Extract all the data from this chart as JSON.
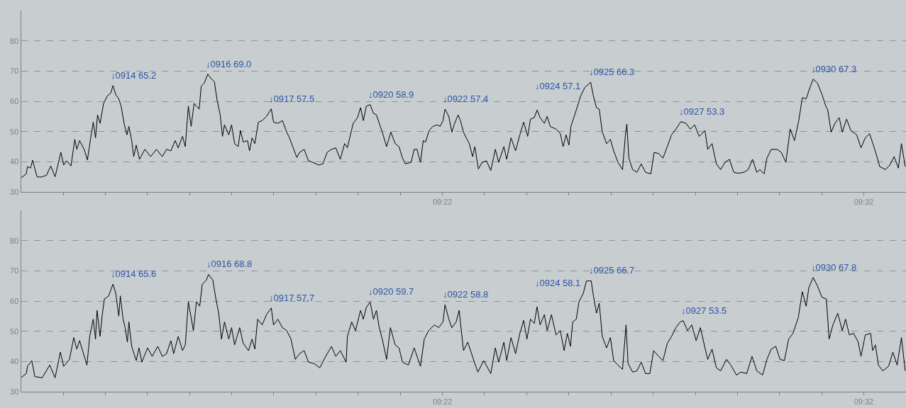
{
  "chart_data": [
    {
      "type": "line",
      "color": "#000000",
      "x": [
        9.2,
        9.2021,
        9.2026,
        9.2038,
        9.2046,
        9.2064,
        9.2078,
        9.2101,
        9.2118,
        9.2135,
        9.2158,
        9.2169,
        9.2181,
        9.2198,
        9.2213,
        9.2221,
        9.2232,
        9.225,
        9.2263,
        9.2275,
        9.2286,
        9.2295,
        9.2303,
        9.2313,
        9.2327,
        9.2341,
        9.2355,
        9.2364,
        9.2375,
        9.2387,
        9.2396,
        9.2408,
        9.2419,
        9.2427,
        9.2438,
        9.2446,
        9.2456,
        9.2469,
        9.249,
        9.2513,
        9.2536,
        9.2559,
        9.2576,
        9.2593,
        9.261,
        9.2622,
        9.2639,
        9.265,
        9.2662,
        9.2673,
        9.2685,
        9.2705,
        9.2713,
        9.2725,
        9.2739,
        9.2753,
        9.2765,
        9.2776,
        9.2788,
        9.2797,
        9.2805,
        9.2822,
        9.2833,
        9.2845,
        9.2859,
        9.2868,
        9.2879,
        9.2896,
        9.2904,
        9.2914,
        9.2925,
        9.2939,
        9.2954,
        9.2971,
        9.299,
        9.2999,
        9.3016,
        9.3034,
        9.3051,
        9.3062,
        9.3079,
        9.3091,
        9.3102,
        9.312,
        9.3137,
        9.3154,
        9.3177,
        9.3194,
        9.3211,
        9.3228,
        9.3245,
        9.3263,
        9.328,
        9.3291,
        9.3303,
        9.3314,
        9.3331,
        9.3343,
        9.3354,
        9.3366,
        9.3381,
        9.3394,
        9.3406,
        9.3417,
        9.3429,
        9.3446,
        9.3463,
        9.348,
        9.3495,
        9.3509,
        9.352,
        9.3543,
        9.3555,
        9.3566,
        9.358,
        9.3591,
        9.36,
        9.3614,
        9.3629,
        9.3646,
        9.3658,
        9.3669,
        9.3677,
        9.3692,
        9.3704,
        9.3715,
        9.3729,
        9.3738,
        9.375,
        9.3761,
        9.3773,
        9.3786,
        9.3795,
        9.3809,
        9.3824,
        9.3841,
        9.3858,
        9.3876,
        9.3889,
        9.391,
        9.3921,
        9.3938,
        9.3956,
        9.3973,
        9.3988,
        9.4004,
        9.4015,
        9.403,
        9.4041,
        9.4053,
        9.407,
        9.4081,
        9.4093,
        9.4116,
        9.4133,
        9.4144,
        9.4156,
        9.4167,
        9.4175,
        9.419,
        9.4201,
        9.4213,
        9.423,
        9.4253,
        9.4264,
        9.4276,
        9.4287,
        9.4299,
        9.4316,
        9.4331,
        9.4344,
        9.4361,
        9.4379,
        9.439,
        9.4396,
        9.4404,
        9.4419,
        9.4436,
        9.4453,
        9.447,
        9.4491,
        9.4504,
        9.4522,
        9.4539,
        9.4556,
        9.4573,
        9.459,
        9.461,
        9.463,
        9.4647,
        9.4664,
        9.4682,
        9.4705,
        9.4716,
        9.4733,
        9.475,
        9.4767,
        9.4784,
        9.4802,
        9.4819,
        9.4836,
        9.4859,
        9.4876,
        9.4893,
        9.491,
        9.4922,
        9.4939,
        9.495,
        9.4967,
        9.499,
        9.5007,
        9.5025,
        9.5042,
        9.5059,
        9.5076,
        9.509,
        9.5105,
        9.5122,
        9.5133,
        9.515,
        9.5168,
        9.5185,
        9.519,
        9.5204,
        9.5219,
        9.5236,
        9.5248,
        9.5265,
        9.5282,
        9.5305,
        9.5322,
        9.5339,
        9.5356,
        9.5373,
        9.5385,
        9.5396,
        9.5419,
        9.5436,
        9.5453,
        9.547,
        9.5482,
        9.5497
      ],
      "values": [
        34.6,
        36.0,
        38.4,
        37.9,
        40.5,
        35.0,
        34.9,
        35.5,
        38.6,
        35.0,
        43.1,
        38.9,
        40.3,
        38.6,
        47.4,
        44.1,
        47.0,
        44.1,
        40.6,
        47.4,
        53.1,
        47.9,
        55.5,
        52.7,
        59.3,
        61.7,
        62.7,
        65.2,
        62.2,
        60.8,
        58.4,
        52.7,
        48.9,
        51.7,
        47.0,
        41.7,
        45.5,
        40.8,
        44.1,
        41.7,
        44.1,
        41.7,
        44.1,
        43.6,
        47.0,
        44.6,
        48.4,
        45.0,
        58.4,
        51.7,
        59.3,
        57.4,
        65.0,
        66.0,
        69.0,
        67.4,
        66.5,
        60.3,
        55.5,
        48.4,
        52.2,
        48.9,
        52.2,
        46.0,
        45.0,
        50.3,
        46.5,
        47.0,
        43.6,
        47.9,
        46.0,
        53.1,
        53.6,
        55.0,
        57.5,
        53.1,
        52.7,
        53.6,
        49.8,
        47.9,
        44.1,
        41.4,
        43.1,
        44.1,
        40.3,
        39.8,
        38.9,
        39.3,
        43.1,
        44.1,
        44.6,
        40.8,
        46.0,
        44.6,
        48.9,
        52.7,
        54.6,
        57.9,
        53.6,
        58.4,
        58.9,
        56.0,
        55.5,
        52.7,
        49.8,
        45.0,
        49.8,
        46.0,
        45.0,
        41.2,
        39.3,
        39.8,
        44.1,
        44.1,
        39.8,
        47.0,
        46.5,
        50.3,
        51.7,
        52.2,
        51.7,
        53.6,
        57.4,
        55.0,
        49.8,
        52.7,
        55.5,
        53.6,
        49.8,
        47.9,
        46.0,
        41.7,
        45.0,
        37.6,
        39.8,
        40.3,
        37.1,
        44.1,
        39.8,
        45.0,
        40.8,
        47.9,
        43.6,
        48.9,
        53.1,
        48.4,
        54.1,
        54.6,
        57.1,
        54.6,
        52.7,
        55.0,
        51.7,
        50.8,
        49.3,
        45.0,
        48.9,
        45.5,
        51.7,
        55.5,
        58.4,
        61.7,
        64.6,
        66.3,
        61.7,
        57.9,
        57.4,
        49.8,
        46.0,
        47.4,
        43.6,
        39.8,
        37.4,
        48.4,
        52.5,
        41.2,
        37.4,
        36.5,
        39.3,
        36.5,
        36.0,
        43.1,
        42.7,
        41.2,
        45.0,
        48.9,
        50.8,
        53.3,
        52.7,
        50.8,
        52.2,
        48.4,
        50.3,
        44.1,
        46.0,
        39.3,
        37.4,
        39.8,
        40.8,
        36.5,
        36.2,
        36.5,
        37.4,
        40.8,
        36.5,
        37.4,
        36.0,
        41.2,
        44.1,
        44.1,
        43.1,
        39.8,
        50.8,
        47.0,
        53.6,
        61.2,
        60.8,
        65.0,
        67.3,
        66.0,
        62.2,
        57.9,
        57.4,
        49.8,
        52.7,
        54.6,
        49.8,
        54.1,
        50.3,
        48.9,
        44.6,
        47.9,
        49.3,
        45.0,
        41.7,
        38.4,
        37.4,
        38.9,
        41.7,
        37.9,
        46.0,
        38.4
      ],
      "xlim": [
        9.2,
        9.55
      ],
      "xticks": [
        {
          "value": 9.2167,
          "label": null
        },
        {
          "value": 9.2333,
          "label": null
        },
        {
          "value": 9.25,
          "label": null
        },
        {
          "value": 9.2667,
          "label": null
        },
        {
          "value": 9.2833,
          "label": null
        },
        {
          "value": 9.3,
          "label": null
        },
        {
          "value": 9.3167,
          "label": null
        },
        {
          "value": 9.3333,
          "label": null
        },
        {
          "value": 9.35,
          "label": null
        },
        {
          "value": 9.3667,
          "label": "09:22"
        },
        {
          "value": 9.3833,
          "label": null
        },
        {
          "value": 9.4,
          "label": null
        },
        {
          "value": 9.4167,
          "label": null
        },
        {
          "value": 9.4333,
          "label": null
        },
        {
          "value": 9.45,
          "label": null
        },
        {
          "value": 9.4667,
          "label": null
        },
        {
          "value": 9.4833,
          "label": null
        },
        {
          "value": 9.5,
          "label": null
        },
        {
          "value": 9.5167,
          "label": null
        },
        {
          "value": 9.5333,
          "label": "09:32"
        }
      ],
      "ylim": [
        30,
        90
      ],
      "yticks": [
        30,
        40,
        50,
        60,
        70,
        80
      ],
      "grid": "y",
      "annotations": [
        {
          "text": "↓0914 65.2",
          "x": 9.2364,
          "y": 65.2
        },
        {
          "text": "↓0916 69.0",
          "x": 9.2739,
          "y": 69.0
        },
        {
          "text": "↓0917 57.5",
          "x": 9.299,
          "y": 57.5
        },
        {
          "text": "↓0920 58.9",
          "x": 9.3381,
          "y": 58.9
        },
        {
          "text": "↓0922 57.4",
          "x": 9.3677,
          "y": 57.4
        },
        {
          "text": "↓0924 57.1",
          "x": 9.4041,
          "y": 57.1
        },
        {
          "text": "↓0925 66.3",
          "x": 9.4253,
          "y": 66.3
        },
        {
          "text": "↓0927 53.3",
          "x": 9.461,
          "y": 53.3
        },
        {
          "text": "↓0930 67.3",
          "x": 9.5133,
          "y": 67.3
        }
      ]
    },
    {
      "type": "line",
      "color": "#000000",
      "x": [
        9.2,
        9.2021,
        9.2026,
        9.2043,
        9.2055,
        9.2084,
        9.2114,
        9.2135,
        9.2156,
        9.2169,
        9.2192,
        9.2209,
        9.2221,
        9.2232,
        9.2261,
        9.2272,
        9.2286,
        9.2295,
        9.2301,
        9.2313,
        9.2321,
        9.233,
        9.2347,
        9.2364,
        9.2375,
        9.2387,
        9.2393,
        9.2404,
        9.2412,
        9.2421,
        9.2427,
        9.2438,
        9.2456,
        9.2467,
        9.2478,
        9.2501,
        9.2519,
        9.2541,
        9.2559,
        9.2576,
        9.2593,
        9.2604,
        9.2622,
        9.2639,
        9.265,
        9.2662,
        9.2682,
        9.2694,
        9.2707,
        9.2717,
        9.2733,
        9.2742,
        9.2759,
        9.277,
        9.2782,
        9.2793,
        9.2805,
        9.2822,
        9.2833,
        9.2845,
        9.2865,
        9.2879,
        9.29,
        9.2914,
        9.2925,
        9.2936,
        9.2954,
        9.2971,
        9.299,
        9.2999,
        9.3016,
        9.3034,
        9.3051,
        9.3068,
        9.3085,
        9.3102,
        9.312,
        9.3137,
        9.316,
        9.3182,
        9.3205,
        9.3228,
        9.3245,
        9.3263,
        9.3286,
        9.3291,
        9.3308,
        9.3323,
        9.3343,
        9.3354,
        9.3366,
        9.3381,
        9.3394,
        9.3406,
        9.3417,
        9.3429,
        9.3446,
        9.3461,
        9.348,
        9.3495,
        9.3509,
        9.3532,
        9.3555,
        9.358,
        9.3595,
        9.3612,
        9.3635,
        9.3652,
        9.3669,
        9.3677,
        9.3692,
        9.3704,
        9.3721,
        9.3733,
        9.375,
        9.3767,
        9.3778,
        9.3795,
        9.3807,
        9.383,
        9.3858,
        9.3876,
        9.3889,
        9.391,
        9.3921,
        9.3938,
        9.3956,
        9.3973,
        9.3988,
        9.4001,
        9.4015,
        9.403,
        9.4041,
        9.4053,
        9.407,
        9.4081,
        9.4098,
        9.4116,
        9.4133,
        9.4148,
        9.4161,
        9.4173,
        9.4182,
        9.4196,
        9.4207,
        9.4224,
        9.4236,
        9.4255,
        9.4264,
        9.4276,
        9.4287,
        9.4299,
        9.4316,
        9.4331,
        9.4344,
        9.4361,
        9.4379,
        9.4393,
        9.4401,
        9.4419,
        9.4436,
        9.4453,
        9.447,
        9.4487,
        9.4502,
        9.4522,
        9.4539,
        9.4556,
        9.4573,
        9.459,
        9.4607,
        9.4619,
        9.4636,
        9.4653,
        9.467,
        9.4687,
        9.4705,
        9.4716,
        9.4733,
        9.475,
        9.4767,
        9.479,
        9.4807,
        9.483,
        9.4847,
        9.487,
        9.4891,
        9.491,
        9.4933,
        9.495,
        9.4967,
        9.4985,
        9.5002,
        9.5019,
        9.5036,
        9.5053,
        9.5074,
        9.509,
        9.5105,
        9.5116,
        9.5133,
        9.515,
        9.5168,
        9.5185,
        9.5196,
        9.5211,
        9.523,
        9.5248,
        9.5261,
        9.5276,
        9.5293,
        9.5311,
        9.5322,
        9.5339,
        9.536,
        9.5368,
        9.5379,
        9.5391,
        9.5408,
        9.5431,
        9.5448,
        9.5465,
        9.5482,
        9.5497
      ],
      "values": [
        34.6,
        36.0,
        38.4,
        40.3,
        35.0,
        34.6,
        38.8,
        34.6,
        43.1,
        38.4,
        40.7,
        47.9,
        44.1,
        46.9,
        38.8,
        48.3,
        54.0,
        47.4,
        56.9,
        48.3,
        55.0,
        60.7,
        61.7,
        65.6,
        62.6,
        55.0,
        61.7,
        54.0,
        51.2,
        46.4,
        53.1,
        45.0,
        40.3,
        44.5,
        39.8,
        44.5,
        41.7,
        45.0,
        41.7,
        42.6,
        46.9,
        42.6,
        48.3,
        43.6,
        45.5,
        59.8,
        50.2,
        59.8,
        58.3,
        65.5,
        66.9,
        68.8,
        66.9,
        61.2,
        56.0,
        47.4,
        53.1,
        47.4,
        51.2,
        45.5,
        51.2,
        46.0,
        43.6,
        47.4,
        44.1,
        54.0,
        52.1,
        55.5,
        57.7,
        52.1,
        54.0,
        51.2,
        50.2,
        47.4,
        40.7,
        42.6,
        43.6,
        39.8,
        39.3,
        37.9,
        41.7,
        45.0,
        41.7,
        43.6,
        39.8,
        48.3,
        53.1,
        50.2,
        56.9,
        54.0,
        57.9,
        59.7,
        54.0,
        56.9,
        51.2,
        47.4,
        40.7,
        51.2,
        45.5,
        44.5,
        39.8,
        38.8,
        44.5,
        38.4,
        47.4,
        50.2,
        52.1,
        51.2,
        53.1,
        58.8,
        54.0,
        51.2,
        53.1,
        56.9,
        43.6,
        46.4,
        43.6,
        39.3,
        36.5,
        40.3,
        36.0,
        44.5,
        39.8,
        46.4,
        40.3,
        47.9,
        42.6,
        49.3,
        53.6,
        47.4,
        54.0,
        52.6,
        58.1,
        52.1,
        55.5,
        50.2,
        55.5,
        48.8,
        50.2,
        43.6,
        49.3,
        45.0,
        53.1,
        54.0,
        59.8,
        62.6,
        66.6,
        66.7,
        61.7,
        56.0,
        59.3,
        48.3,
        44.5,
        47.9,
        40.3,
        38.8,
        37.4,
        52.1,
        39.3,
        36.5,
        36.9,
        39.8,
        36.0,
        36.0,
        43.6,
        41.7,
        40.3,
        46.0,
        48.3,
        51.2,
        53.1,
        53.5,
        50.2,
        52.1,
        46.9,
        51.2,
        44.5,
        40.7,
        44.1,
        37.9,
        36.9,
        40.7,
        38.8,
        35.5,
        36.5,
        36.0,
        41.7,
        36.9,
        35.5,
        40.7,
        44.1,
        45.0,
        40.7,
        40.3,
        47.4,
        49.3,
        54.5,
        63.1,
        58.3,
        64.5,
        67.8,
        65.0,
        61.2,
        60.7,
        47.4,
        52.1,
        56.0,
        50.2,
        54.0,
        48.8,
        49.3,
        46.4,
        41.7,
        48.8,
        49.3,
        43.6,
        45.5,
        38.8,
        36.9,
        38.4,
        43.1,
        38.8,
        47.9,
        36.9
      ],
      "xlim": [
        9.2,
        9.55
      ],
      "xticks": [
        {
          "value": 9.2167,
          "label": null
        },
        {
          "value": 9.2333,
          "label": null
        },
        {
          "value": 9.25,
          "label": null
        },
        {
          "value": 9.2667,
          "label": null
        },
        {
          "value": 9.2833,
          "label": null
        },
        {
          "value": 9.3,
          "label": null
        },
        {
          "value": 9.3167,
          "label": null
        },
        {
          "value": 9.3333,
          "label": null
        },
        {
          "value": 9.35,
          "label": null
        },
        {
          "value": 9.3667,
          "label": "09:22"
        },
        {
          "value": 9.3833,
          "label": null
        },
        {
          "value": 9.4,
          "label": null
        },
        {
          "value": 9.4167,
          "label": null
        },
        {
          "value": 9.4333,
          "label": null
        },
        {
          "value": 9.45,
          "label": null
        },
        {
          "value": 9.4667,
          "label": null
        },
        {
          "value": 9.4833,
          "label": null
        },
        {
          "value": 9.5,
          "label": null
        },
        {
          "value": 9.5167,
          "label": null
        },
        {
          "value": 9.5333,
          "label": "09:32"
        }
      ],
      "ylim": [
        30,
        90
      ],
      "yticks": [
        30,
        40,
        50,
        60,
        70,
        80
      ],
      "grid": "y",
      "annotations": [
        {
          "text": "↓0914 65.6",
          "x": 9.2364,
          "y": 65.6
        },
        {
          "text": "↓0916 68.8",
          "x": 9.2742,
          "y": 68.8
        },
        {
          "text": "↓0917 57.7",
          "x": 9.299,
          "y": 57.7
        },
        {
          "text": "↓0920 59.7",
          "x": 9.3381,
          "y": 59.7
        },
        {
          "text": "↓0922 58.8",
          "x": 9.3677,
          "y": 58.8
        },
        {
          "text": "↓0924 58.1",
          "x": 9.4041,
          "y": 58.1
        },
        {
          "text": "↓0925 66.7",
          "x": 9.4255,
          "y": 66.7
        },
        {
          "text": "↓0927 53.5",
          "x": 9.4619,
          "y": 53.5
        },
        {
          "text": "↓0930 67.8",
          "x": 9.5133,
          "y": 67.8
        }
      ]
    }
  ]
}
